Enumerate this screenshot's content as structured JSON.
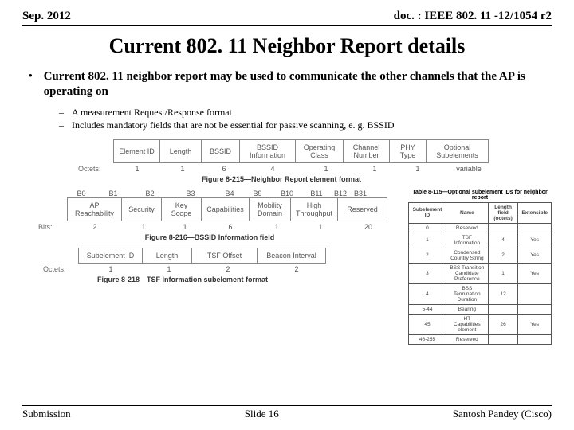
{
  "header": {
    "left": "Sep.  2012",
    "right": "doc. : IEEE 802. 11 -12/1054 r2"
  },
  "title": "Current 802. 11 Neighbor Report details",
  "bullet": "Current 802. 11 neighbor report may be used to communicate the other channels that the AP is operating on",
  "subs": [
    "A measurement Request/Response format",
    "Includes mandatory fields that are not be essential for passive scanning, e. g. BSSID"
  ],
  "fig1": {
    "octets_label": "Octets:",
    "headers": [
      "Element ID",
      "Length",
      "BSSID",
      "BSSID Information",
      "Operating Class",
      "Channel Number",
      "PHY Type",
      "Optional Subelements"
    ],
    "widths": [
      58,
      52,
      48,
      70,
      60,
      58,
      46,
      78
    ],
    "values": [
      "1",
      "1",
      "6",
      "4",
      "1",
      "1",
      "1",
      "variable"
    ],
    "caption": "Figure 8-215—Neighbor Report element format"
  },
  "fig2": {
    "top_labels": [
      "B0",
      "B1",
      "B2",
      "B3",
      "B4",
      "B9",
      "B10",
      "B11",
      "B12",
      "B31"
    ],
    "top_widths": [
      34,
      42,
      46,
      52,
      42,
      24,
      46,
      24,
      32,
      14
    ],
    "headers": [
      "AP Reachability",
      "Security",
      "Key Scope",
      "Capabilities",
      "Mobility Domain",
      "High Throughput",
      "Reserved"
    ],
    "widths": [
      68,
      50,
      50,
      60,
      52,
      54,
      62
    ],
    "bits_label": "Bits:",
    "values": [
      "2",
      "1",
      "1",
      "6",
      "1",
      "1",
      "20"
    ],
    "caption": "Figure 8-216—BSSID Information field"
  },
  "fig3": {
    "octets_label": "Octets:",
    "headers": [
      "Subelement ID",
      "Length",
      "TSF Offset",
      "Beacon Interval"
    ],
    "widths": [
      80,
      62,
      82,
      86
    ],
    "values": [
      "1",
      "1",
      "2",
      "2"
    ],
    "caption": "Figure 8-218—TSF Information subelement format"
  },
  "opt": {
    "title": "Table 8-115—Optional subelement IDs for neighbor report",
    "cols": [
      "Subelement ID",
      "Name",
      "Length field (octets)",
      "Extensible"
    ],
    "rows": [
      [
        "0",
        "Reserved",
        "",
        ""
      ],
      [
        "1",
        "TSF Information",
        "4",
        "Yes"
      ],
      [
        "2",
        "Condensed Country String",
        "2",
        "Yes"
      ],
      [
        "3",
        "BSS Transition Candidate Preference",
        "1",
        "Yes"
      ],
      [
        "4",
        "BSS Termination Duration",
        "12",
        ""
      ],
      [
        "5-44",
        "Bearing",
        "",
        ""
      ],
      [
        "45",
        "HT Capabilities element",
        "26",
        "Yes"
      ],
      [
        "46-255",
        "Reserved",
        "",
        ""
      ]
    ]
  },
  "footer": {
    "left": "Submission",
    "center": "Slide 16",
    "right": "Santosh Pandey (Cisco)"
  }
}
